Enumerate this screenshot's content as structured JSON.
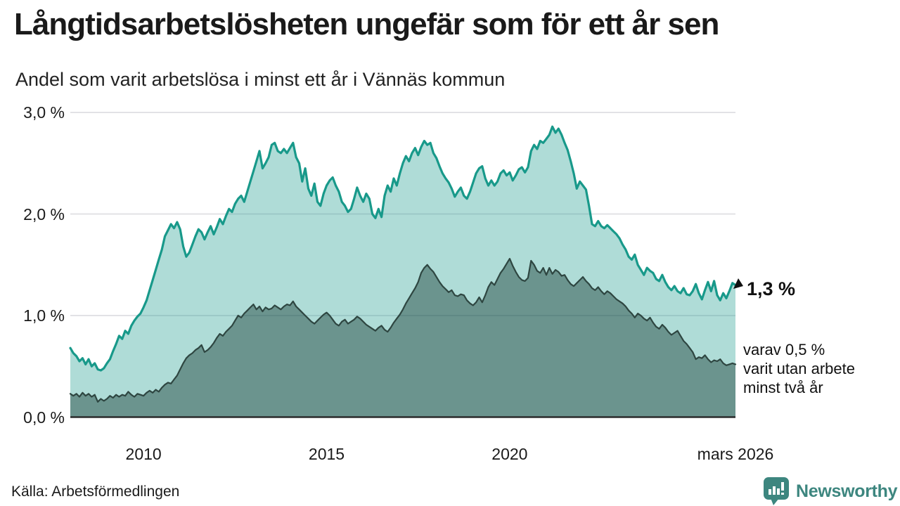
{
  "title": "Långtidsarbetslösheten ungefär som för ett år sen",
  "subtitle": "Andel som varit arbetslösa i minst ett år i Vännäs kommun",
  "y_axis": {
    "ticks": [
      {
        "label": "3,0 %",
        "value": 3
      },
      {
        "label": "2,0 %",
        "value": 2
      },
      {
        "label": "1,0 %",
        "value": 1
      },
      {
        "label": "0,0 %",
        "value": 0
      }
    ]
  },
  "x_axis": {
    "ticks": [
      {
        "label": "2010",
        "month_index": 24
      },
      {
        "label": "2015",
        "month_index": 84
      },
      {
        "label": "2020",
        "month_index": 144
      },
      {
        "label": "mars 2026",
        "month_index": 218
      }
    ]
  },
  "annotations": {
    "latest_value": "1,3 %",
    "secondary": [
      "varav 0,5 %",
      "varit utan arbete",
      "minst två år"
    ]
  },
  "source": "Källa: Arbetsförmedlingen",
  "branding": {
    "name": "Newsworthy",
    "logo_icon": "bar-chart-speech-bubble-icon"
  },
  "colors": {
    "line_1yr": "#18998a",
    "fill_1yr": "rgba(26,156,140,0.35)",
    "line_2yr": "#2e4641",
    "fill_2yr": "rgba(24,60,54,0.45)",
    "gridline": "#e2e2e6",
    "baseline": "#2b2b2b",
    "brand_teal": "#3d867f"
  },
  "chart_data": {
    "type": "area",
    "title": "Långtidsarbetslösheten ungefär som för ett år sen",
    "subtitle": "Andel som varit arbetslösa i minst ett år i Vännäs kommun",
    "unit": "%",
    "x_start": "2008-01",
    "x_end": "2026-03",
    "x_interval": "monthly",
    "ylim": [
      0,
      3.0
    ],
    "grid": "horizontal",
    "latest_values": {
      "minst_ett_ar": 1.3,
      "minst_tva_ar": 0.5
    },
    "series": [
      {
        "name": "Andel arbetslösa minst ett år",
        "values": [
          0.68,
          0.63,
          0.6,
          0.55,
          0.58,
          0.52,
          0.57,
          0.5,
          0.53,
          0.47,
          0.46,
          0.48,
          0.53,
          0.57,
          0.65,
          0.72,
          0.8,
          0.77,
          0.85,
          0.82,
          0.9,
          0.95,
          0.99,
          1.02,
          1.08,
          1.15,
          1.25,
          1.35,
          1.45,
          1.55,
          1.65,
          1.78,
          1.84,
          1.9,
          1.86,
          1.92,
          1.85,
          1.68,
          1.58,
          1.62,
          1.7,
          1.78,
          1.85,
          1.82,
          1.75,
          1.82,
          1.88,
          1.8,
          1.87,
          1.95,
          1.9,
          1.98,
          2.05,
          2.02,
          2.1,
          2.15,
          2.18,
          2.12,
          2.22,
          2.32,
          2.42,
          2.52,
          2.62,
          2.45,
          2.5,
          2.56,
          2.68,
          2.7,
          2.62,
          2.6,
          2.64,
          2.6,
          2.65,
          2.7,
          2.56,
          2.5,
          2.32,
          2.45,
          2.25,
          2.18,
          2.3,
          2.12,
          2.08,
          2.2,
          2.28,
          2.33,
          2.36,
          2.28,
          2.22,
          2.12,
          2.08,
          2.02,
          2.05,
          2.15,
          2.26,
          2.18,
          2.12,
          2.2,
          2.15,
          2.0,
          1.96,
          2.05,
          1.97,
          2.18,
          2.28,
          2.22,
          2.35,
          2.28,
          2.4,
          2.5,
          2.57,
          2.52,
          2.6,
          2.65,
          2.58,
          2.66,
          2.72,
          2.68,
          2.7,
          2.6,
          2.55,
          2.47,
          2.4,
          2.35,
          2.31,
          2.25,
          2.17,
          2.22,
          2.26,
          2.18,
          2.15,
          2.22,
          2.31,
          2.4,
          2.45,
          2.47,
          2.35,
          2.28,
          2.33,
          2.28,
          2.32,
          2.4,
          2.43,
          2.38,
          2.41,
          2.33,
          2.38,
          2.44,
          2.46,
          2.41,
          2.46,
          2.62,
          2.68,
          2.64,
          2.72,
          2.7,
          2.74,
          2.78,
          2.86,
          2.8,
          2.84,
          2.78,
          2.7,
          2.63,
          2.52,
          2.4,
          2.25,
          2.32,
          2.28,
          2.24,
          2.08,
          1.9,
          1.88,
          1.93,
          1.88,
          1.86,
          1.89,
          1.86,
          1.83,
          1.8,
          1.76,
          1.7,
          1.65,
          1.58,
          1.55,
          1.6,
          1.5,
          1.45,
          1.4,
          1.47,
          1.44,
          1.42,
          1.36,
          1.34,
          1.4,
          1.33,
          1.28,
          1.25,
          1.29,
          1.24,
          1.22,
          1.27,
          1.21,
          1.2,
          1.24,
          1.31,
          1.22,
          1.16,
          1.25,
          1.33,
          1.24,
          1.34,
          1.2,
          1.15,
          1.22,
          1.17,
          1.24,
          1.32,
          1.3
        ]
      },
      {
        "name": "varav utan arbete minst två år",
        "values": [
          0.23,
          0.21,
          0.23,
          0.2,
          0.24,
          0.21,
          0.23,
          0.2,
          0.22,
          0.15,
          0.18,
          0.16,
          0.18,
          0.21,
          0.19,
          0.22,
          0.2,
          0.22,
          0.21,
          0.25,
          0.22,
          0.2,
          0.23,
          0.22,
          0.21,
          0.24,
          0.26,
          0.24,
          0.27,
          0.25,
          0.29,
          0.32,
          0.34,
          0.33,
          0.37,
          0.41,
          0.47,
          0.53,
          0.58,
          0.61,
          0.63,
          0.66,
          0.68,
          0.71,
          0.64,
          0.66,
          0.69,
          0.73,
          0.78,
          0.82,
          0.8,
          0.84,
          0.87,
          0.9,
          0.95,
          1.0,
          0.98,
          1.02,
          1.05,
          1.08,
          1.11,
          1.06,
          1.09,
          1.04,
          1.08,
          1.06,
          1.07,
          1.1,
          1.08,
          1.06,
          1.09,
          1.11,
          1.1,
          1.14,
          1.09,
          1.06,
          1.03,
          1.0,
          0.97,
          0.94,
          0.92,
          0.95,
          0.98,
          1.01,
          1.03,
          1.0,
          0.96,
          0.92,
          0.9,
          0.94,
          0.96,
          0.92,
          0.94,
          0.96,
          0.99,
          0.97,
          0.94,
          0.91,
          0.89,
          0.87,
          0.85,
          0.88,
          0.9,
          0.86,
          0.84,
          0.88,
          0.93,
          0.97,
          1.01,
          1.06,
          1.12,
          1.17,
          1.22,
          1.27,
          1.33,
          1.42,
          1.47,
          1.5,
          1.46,
          1.43,
          1.38,
          1.33,
          1.29,
          1.26,
          1.23,
          1.25,
          1.2,
          1.19,
          1.21,
          1.2,
          1.15,
          1.12,
          1.1,
          1.13,
          1.18,
          1.13,
          1.2,
          1.28,
          1.33,
          1.3,
          1.36,
          1.42,
          1.46,
          1.51,
          1.56,
          1.49,
          1.43,
          1.38,
          1.35,
          1.34,
          1.37,
          1.54,
          1.5,
          1.44,
          1.42,
          1.47,
          1.4,
          1.47,
          1.41,
          1.45,
          1.43,
          1.39,
          1.4,
          1.35,
          1.31,
          1.29,
          1.32,
          1.35,
          1.38,
          1.34,
          1.31,
          1.27,
          1.25,
          1.28,
          1.24,
          1.21,
          1.24,
          1.22,
          1.19,
          1.16,
          1.14,
          1.12,
          1.09,
          1.05,
          1.02,
          0.98,
          1.02,
          1.0,
          0.97,
          0.95,
          0.98,
          0.93,
          0.89,
          0.87,
          0.91,
          0.88,
          0.84,
          0.81,
          0.83,
          0.85,
          0.8,
          0.75,
          0.72,
          0.68,
          0.64,
          0.57,
          0.59,
          0.58,
          0.61,
          0.57,
          0.54,
          0.56,
          0.55,
          0.57,
          0.53,
          0.51,
          0.52,
          0.53,
          0.52
        ]
      }
    ]
  }
}
